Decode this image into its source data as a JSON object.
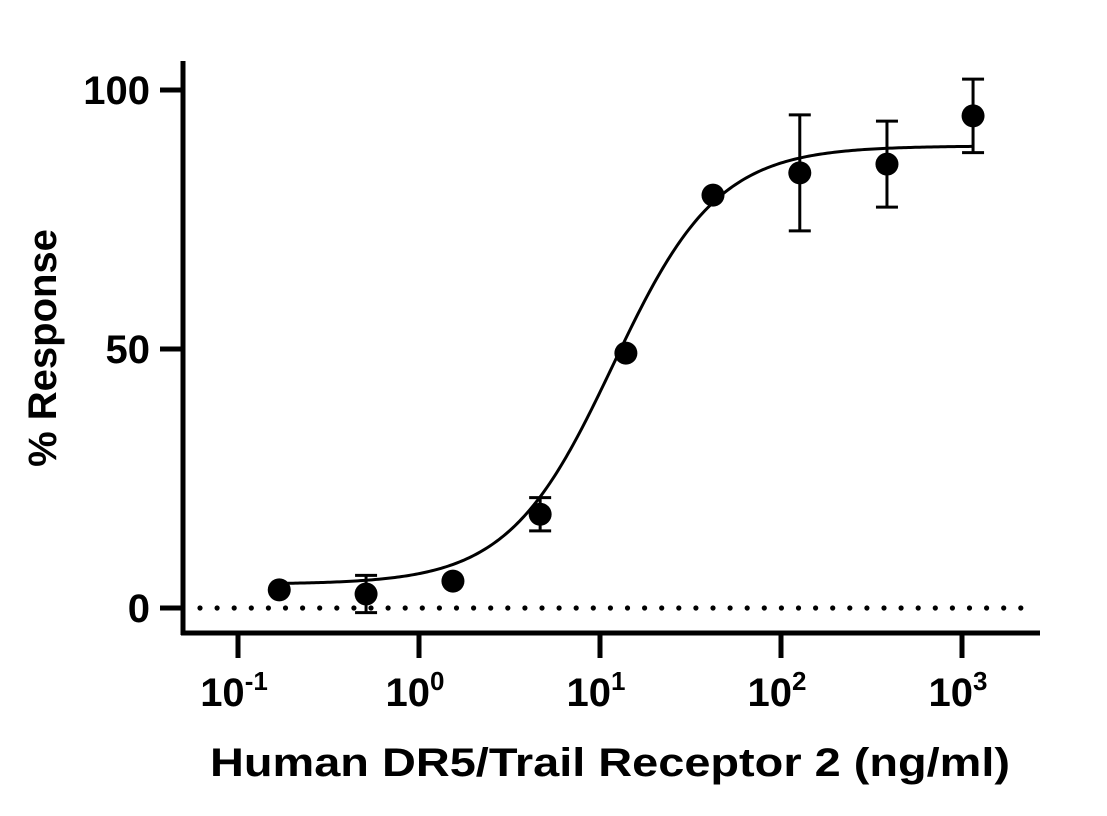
{
  "chart_data": {
    "type": "scatter",
    "title": "",
    "xlabel": "Human DR5/Trail Receptor 2 (ng/ml)",
    "ylabel": "% Response",
    "xscale": "log10",
    "xlim": [
      0.05,
      2500
    ],
    "ylim": [
      -5,
      105
    ],
    "grid": false,
    "legend": null,
    "x_ticks": [
      {
        "value": 0.1,
        "base": "10",
        "exp": "-1"
      },
      {
        "value": 1,
        "base": "10",
        "exp": "0"
      },
      {
        "value": 10,
        "base": "10",
        "exp": "1"
      },
      {
        "value": 100,
        "base": "10",
        "exp": "2"
      },
      {
        "value": 1000,
        "base": "10",
        "exp": "3"
      }
    ],
    "y_ticks": [
      {
        "value": 0,
        "label": "0"
      },
      {
        "value": 50,
        "label": "50"
      },
      {
        "value": 100,
        "label": "100"
      }
    ],
    "baseline": {
      "y": 0,
      "style": "dotted"
    },
    "series": [
      {
        "name": "% Response",
        "marker": "filled-circle",
        "color": "#000000",
        "points": [
          {
            "x": 0.169,
            "y": 3.5,
            "err": 0
          },
          {
            "x": 0.51,
            "y": 2.7,
            "err": 3.6
          },
          {
            "x": 1.54,
            "y": 5.2,
            "err": 0
          },
          {
            "x": 4.67,
            "y": 18.1,
            "err": 3.2
          },
          {
            "x": 13.9,
            "y": 49.2,
            "err": 0
          },
          {
            "x": 42.1,
            "y": 79.7,
            "err": 0
          },
          {
            "x": 127,
            "y": 84.0,
            "err": 11.2
          },
          {
            "x": 385,
            "y": 85.7,
            "err": 8.3
          },
          {
            "x": 1151,
            "y": 95.0,
            "err": 7.1
          }
        ]
      }
    ],
    "fit_curve": {
      "model": "4PL",
      "bottom": 4.6,
      "top": 89.2,
      "ec50": 11.8,
      "hill_slope": 1.5,
      "x_start": 0.169,
      "x_end": 1151
    }
  }
}
